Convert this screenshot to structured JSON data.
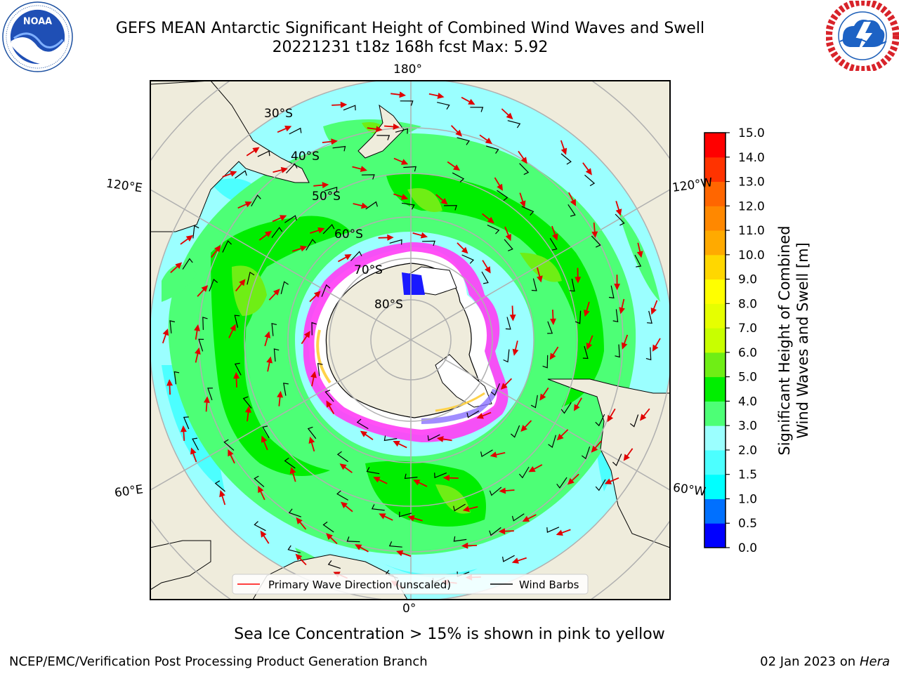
{
  "header": {
    "title_line1": "GEFS MEAN Antarctic Significant Height of Combined Wind Waves and Swell",
    "title_line2": "20221231 t18z 168h fcst   Max: 5.92"
  },
  "logos": {
    "left": "noaa-logo",
    "right": "nws-logo"
  },
  "map": {
    "projection": "south-polar-stereographic",
    "longitude_labels": [
      "180°",
      "120°E",
      "120°W",
      "60°E",
      "60°W",
      "0°"
    ],
    "latitude_labels": [
      "30°S",
      "40°S",
      "50°S",
      "60°S",
      "70°S",
      "80°S"
    ],
    "land_color": "#efecdc",
    "ocean_fill_levels": [
      {
        "range": "2.0-3.0",
        "color": "#9bffff"
      },
      {
        "range": "1.5-2.0",
        "color": "#4cffff"
      },
      {
        "range": "3.0-4.0",
        "color": "#4dff76"
      },
      {
        "range": "4.0-5.0",
        "color": "#00ee00"
      },
      {
        "range": "5.0-6.0",
        "color": "#6fee15"
      }
    ],
    "sea_ice_colors": [
      "#ff3df5",
      "#8a70ff",
      "#ffd24a"
    ]
  },
  "legend": {
    "items": [
      {
        "label": "Primary Wave Direction (unscaled)",
        "color": "#ff0000"
      },
      {
        "label": "Wind Barbs",
        "color": "#000000"
      }
    ]
  },
  "colorbar": {
    "title_line1": "Significant Height of Combined",
    "title_line2": "Wind Waves and Swell [m]",
    "ticks": [
      "0.0",
      "0.5",
      "1.0",
      "1.5",
      "2.0",
      "3.0",
      "4.0",
      "5.0",
      "6.0",
      "7.0",
      "8.0",
      "9.0",
      "10.0",
      "11.0",
      "12.0",
      "13.0",
      "14.0",
      "15.0"
    ],
    "colors": [
      "#0000ff",
      "#0070ff",
      "#00ffff",
      "#4cffff",
      "#9bffff",
      "#4dff76",
      "#00ee00",
      "#6fee15",
      "#c8ff00",
      "#e6ff00",
      "#ffff00",
      "#ffd700",
      "#ffaa00",
      "#ff8800",
      "#ff6600",
      "#ff3300",
      "#ff0000"
    ]
  },
  "footer": {
    "note": "Sea Ice Concentration > 15% is shown in pink to yellow",
    "left": "NCEP/EMC/Verification Post Processing Product Generation Branch",
    "right_date": "02 Jan 2023 on",
    "right_host": "Hera"
  }
}
